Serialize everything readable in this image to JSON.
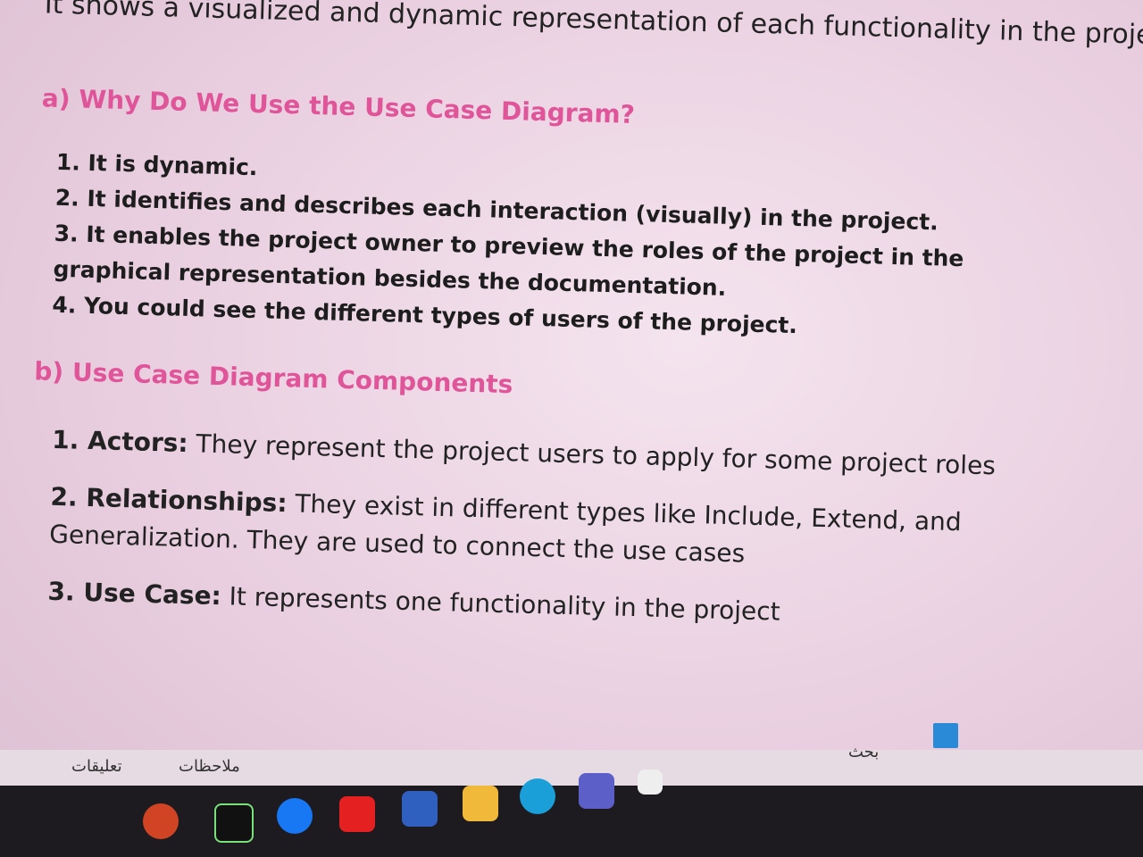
{
  "intro": "It shows a visualized and dynamic representation of each functionality in the project.",
  "section_a": {
    "title": "a) Why Do We Use the Use Case Diagram?",
    "items": [
      "1. It is dynamic.",
      "2. It identifies and describes each interaction (visually) in the project.",
      "3. It enables the project owner to preview the roles of the project in the graphical representation besides the documentation.",
      "4. You could see the different types of users of the project."
    ]
  },
  "section_b": {
    "title": "b) Use Case Diagram Components",
    "items": [
      {
        "label": "1. Actors:",
        "text": "They represent the project users to apply for some project roles"
      },
      {
        "label": "2. Relationships:",
        "text": "They exist in different types like Include, Extend, and Generalization. They are used to connect the use cases"
      },
      {
        "label": "3. Use Case:",
        "text": "It represents one functionality in the project"
      }
    ]
  },
  "statusbar": {
    "comments": "تعليقات",
    "notes": "ملاحظات"
  },
  "taskbar": {
    "search": "بحث"
  }
}
